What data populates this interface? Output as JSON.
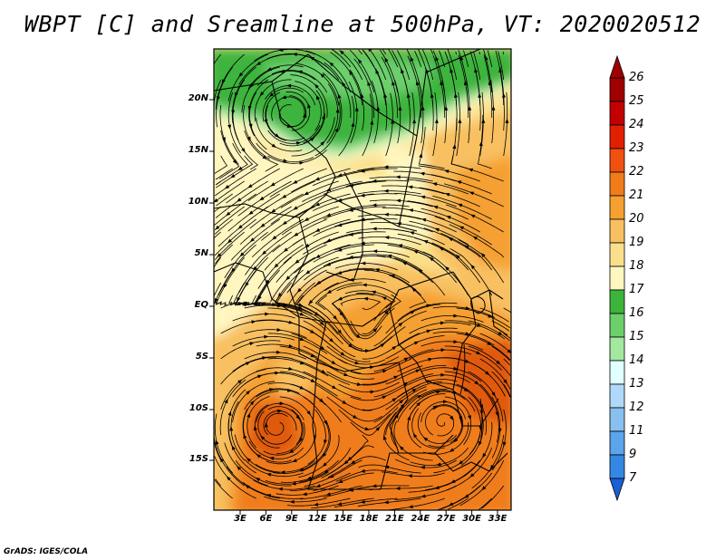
{
  "title": "WBPT [C] and Sreamline at 500hPa, VT: 2020020512",
  "credit": "GrADS: IGES/COLA",
  "lat_labels": [
    "20N",
    "15N",
    "10N",
    "5N",
    "EQ",
    "5S",
    "10S",
    "15S"
  ],
  "lon_labels": [
    "3E",
    "6E",
    "9E",
    "12E",
    "15E",
    "18E",
    "21E",
    "24E",
    "27E",
    "30E",
    "33E"
  ],
  "colorbar": {
    "labels": [
      "26",
      "25",
      "24",
      "23",
      "22",
      "21",
      "20",
      "19",
      "18",
      "17",
      "16",
      "15",
      "14",
      "13",
      "12",
      "11",
      "9",
      "7"
    ],
    "colors": [
      "#a00000",
      "#c20000",
      "#e02000",
      "#f05010",
      "#f07d1a",
      "#f5a030",
      "#f8c060",
      "#fae08c",
      "#fff6c0",
      "#3cb43c",
      "#6ccf6c",
      "#a4e8a0",
      "#e0ffff",
      "#b0d8f8",
      "#88c0f0",
      "#5ca4ec",
      "#3488e4",
      "#1c6ce0"
    ],
    "top_color": "#a00000",
    "bottom_color": "#1a5fd6"
  },
  "field_colors": {
    "green_dark": "#3cb43c",
    "green_mid": "#6ccf6c",
    "green_light": "#a4e8a0",
    "c19": "#fff6c0",
    "c20": "#fae08c",
    "c21": "#f8c060",
    "c22": "#f5a030",
    "c23": "#f07d1a",
    "c24": "#e05a10"
  }
}
